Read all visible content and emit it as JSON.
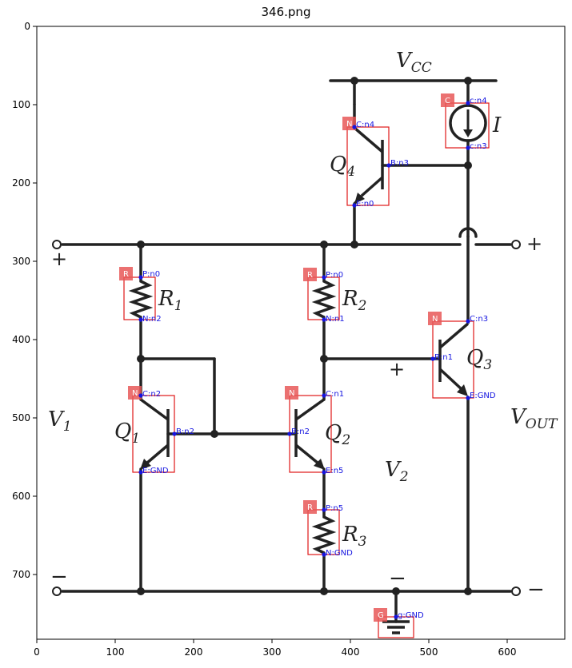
{
  "figure": {
    "title": "346.png",
    "x_ticks": [
      "0",
      "100",
      "200",
      "300",
      "400",
      "500",
      "600"
    ],
    "y_ticks": [
      "0",
      "100",
      "200",
      "300",
      "400",
      "500",
      "600",
      "700"
    ]
  },
  "circuit": {
    "labels": {
      "vcc": "V",
      "vcc_sub": "CC",
      "i": "I",
      "q4": "Q",
      "q4_sub": "4",
      "r1": "R",
      "r1_sub": "1",
      "r2": "R",
      "r2_sub": "2",
      "q3": "Q",
      "q3_sub": "3",
      "v1": "V",
      "v1_sub": "1",
      "q1": "Q",
      "q1_sub": "1",
      "q2": "Q",
      "q2_sub": "2",
      "vout": "V",
      "vout_sub": "OUT",
      "v2": "V",
      "v2_sub": "2",
      "r3": "R",
      "r3_sub": "3",
      "plus_in": "+",
      "plus_out": "+",
      "plus_v2": "+",
      "minus_in": "−",
      "minus_out": "−",
      "minus_v2": "−"
    }
  },
  "annotations": {
    "tags": {
      "C": "C",
      "N_q4": "N",
      "R_r1": "R",
      "R_r2": "R",
      "N_q3": "N",
      "N_q1": "N",
      "N_q2": "N",
      "R_r3": "R",
      "G": "G"
    },
    "pins": {
      "c_n4": "c:n4",
      "c_n3": "c:n3",
      "q4_c": "C:n4",
      "q4_b": "B:n3",
      "q4_e": "E:n0",
      "r1_p": "P:n0",
      "r1_n": "N:n2",
      "r2_p": "P:n0",
      "r2_n": "N:n1",
      "q3_c": "C:n3",
      "q3_b": "B:n1",
      "q3_e": "E:GND",
      "q1_c": "C:n2",
      "q1_b": "B:n2",
      "q1_e": "E:GND",
      "q2_c": "C:n1",
      "q2_b": "B:n2",
      "q2_e": "E:n5",
      "r3_p": "P:n5",
      "r3_n": "N:GND",
      "g": "g:GND"
    }
  }
}
